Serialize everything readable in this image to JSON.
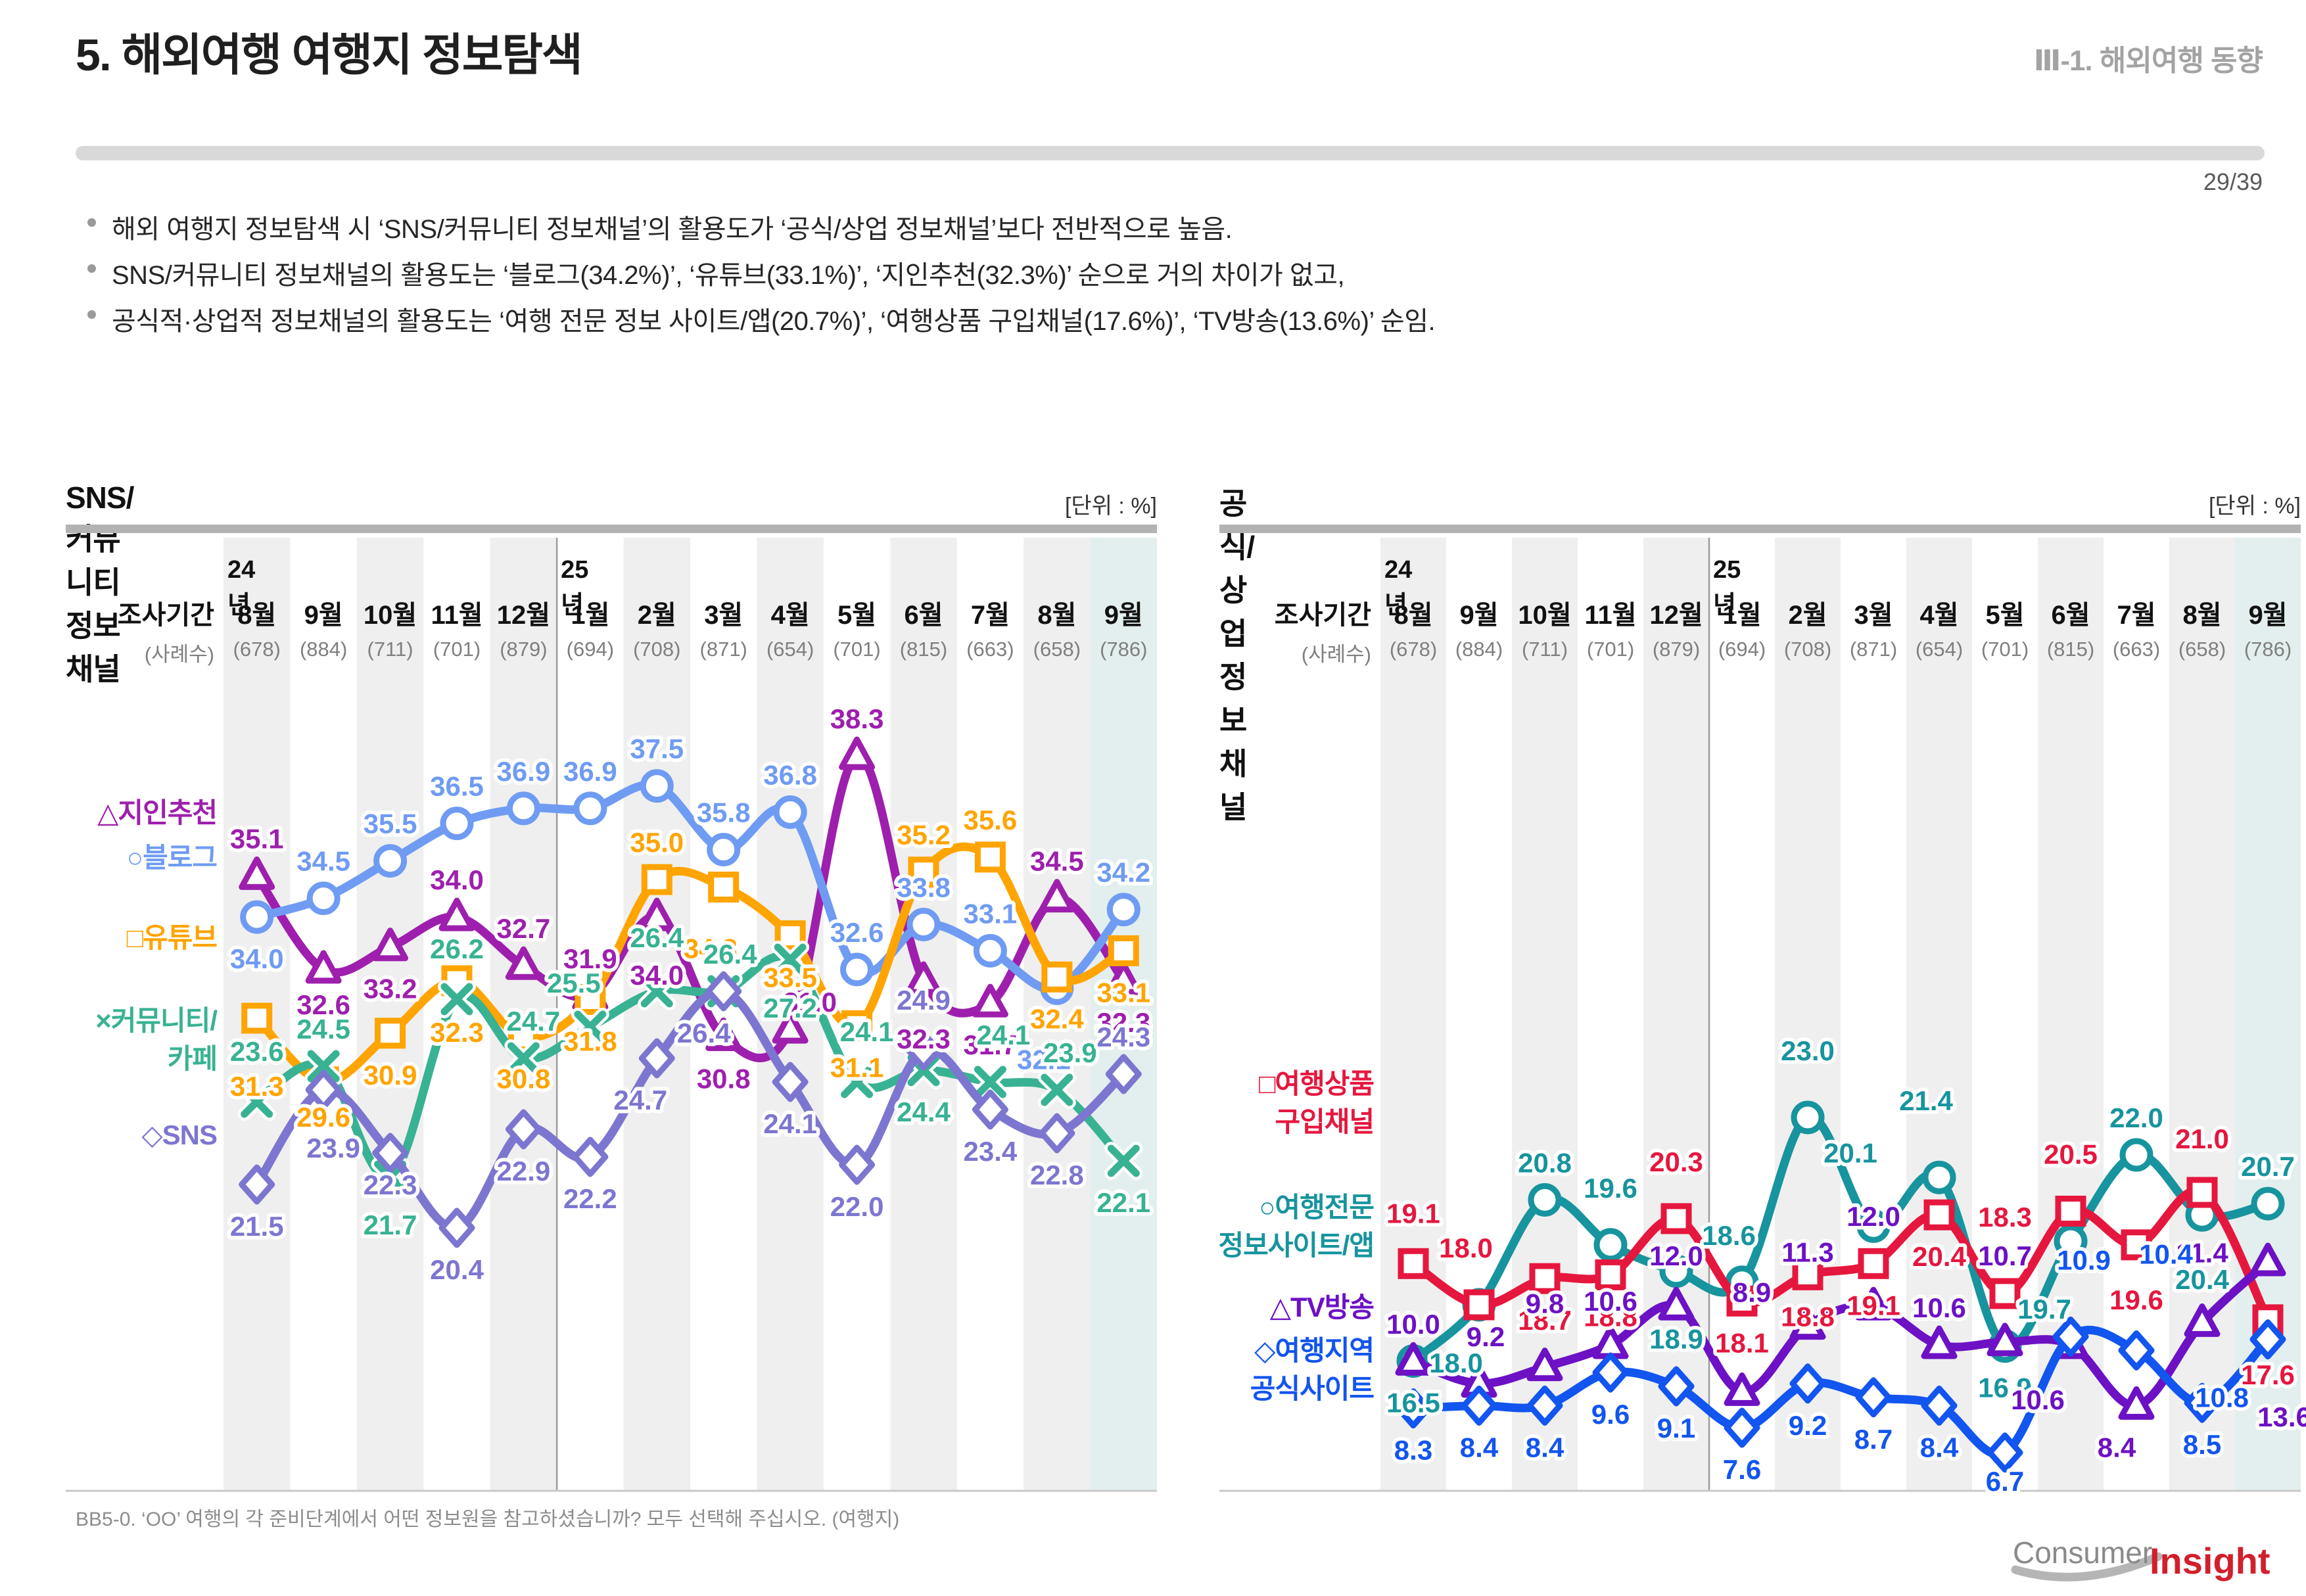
{
  "header": {
    "title": "5. 해외여행 여행지 정보탐색",
    "section": "Ⅲ-1. 해외여행 동향",
    "page_number": "29/39"
  },
  "bullets": [
    "해외 여행지 정보탐색 시 ‘SNS/커뮤니티 정보채널’의 활용도가 ‘공식/상업 정보채널’보다 전반적으로 높음.",
    "SNS/커뮤니티 정보채널의 활용도는 ‘블로그(34.2%)’, ‘유튜브(33.1%)’, ‘지인추천(32.3%)’ 순으로 거의 차이가 없고,",
    "공식적·상업적 정보채널의 활용도는 ‘여행 전문 정보 사이트/앱(20.7%)’, ‘여행상품 구입채널(17.6%)’, ‘TV방송(13.6%)’ 순임."
  ],
  "footnote": "BB5-0. ‘OO’ 여행의 각 준비단계에서 어떤 정보원을 참고하셨습니까? 모두 선택해 주십시오. (여행지)",
  "logo": {
    "gray": "Consumer",
    "red": "Insight"
  },
  "chart_data": [
    {
      "type": "line",
      "title": "SNS/커뮤니티 정보채널",
      "unit_label": "[단위 : %]",
      "row_head_period": "조사기간",
      "row_head_samples": "(사례수)",
      "year_groups": [
        {
          "label": "24년",
          "start_index": 0
        },
        {
          "label": "25년",
          "start_index": 5
        }
      ],
      "categories": [
        "8월",
        "9월",
        "10월",
        "11월",
        "12월",
        "1월",
        "2월",
        "3월",
        "4월",
        "5월",
        "6월",
        "7월",
        "8월",
        "9월"
      ],
      "samples": [
        "(678)",
        "(884)",
        "(711)",
        "(701)",
        "(879)",
        "(694)",
        "(708)",
        "(871)",
        "(654)",
        "(701)",
        "(815)",
        "(663)",
        "(658)",
        "(786)"
      ],
      "series": [
        {
          "key": "acquaintance-recommendation",
          "name": "지인추천",
          "legend_lines": [
            "△지인추천"
          ],
          "marker": "triangle",
          "color": "#9e1fad",
          "band": "A",
          "values": [
            35.1,
            32.6,
            33.2,
            34.0,
            32.7,
            31.9,
            34.0,
            30.8,
            31.0,
            38.3,
            32.3,
            31.7,
            34.5,
            32.3
          ]
        },
        {
          "key": "blog",
          "name": "블로그",
          "legend_lines": [
            "○블로그"
          ],
          "marker": "circle",
          "color": "#6f9bf2",
          "band": "A",
          "values": [
            34.0,
            34.5,
            35.5,
            36.5,
            36.9,
            36.9,
            37.5,
            35.8,
            36.8,
            32.6,
            33.8,
            33.1,
            32.1,
            34.2
          ]
        },
        {
          "key": "youtube",
          "name": "유튜브",
          "legend_lines": [
            "□유튜브"
          ],
          "marker": "square",
          "color": "#ffa400",
          "band": "A",
          "values": [
            31.3,
            29.6,
            30.9,
            32.3,
            30.8,
            31.8,
            35.0,
            34.8,
            33.5,
            31.1,
            35.2,
            35.6,
            32.4,
            33.1
          ]
        },
        {
          "key": "community-cafe",
          "name": "커뮤니티/카페",
          "legend_lines": [
            "×커뮤니티/",
            "카페"
          ],
          "marker": "xmark",
          "color": "#38b293",
          "band": "B",
          "values": [
            23.6,
            24.5,
            21.7,
            26.2,
            24.7,
            25.5,
            26.4,
            26.4,
            27.2,
            24.1,
            24.4,
            24.1,
            23.9,
            22.1
          ]
        },
        {
          "key": "sns",
          "name": "SNS",
          "legend_lines": [
            "◇SNS"
          ],
          "marker": "diamond",
          "color": "#7d76d0",
          "band": "B",
          "values": [
            21.5,
            23.9,
            22.3,
            20.4,
            22.9,
            22.2,
            24.7,
            26.4,
            24.1,
            22.0,
            24.9,
            23.4,
            22.8,
            24.3
          ]
        }
      ]
    },
    {
      "type": "line",
      "title": "공식/상업 정보채널",
      "unit_label": "[단위 : %]",
      "row_head_period": "조사기간",
      "row_head_samples": "(사례수)",
      "year_groups": [
        {
          "label": "24년",
          "start_index": 0
        },
        {
          "label": "25년",
          "start_index": 5
        }
      ],
      "categories": [
        "8월",
        "9월",
        "10월",
        "11월",
        "12월",
        "1월",
        "2월",
        "3월",
        "4월",
        "5월",
        "6월",
        "7월",
        "8월",
        "9월"
      ],
      "samples": [
        "(678)",
        "(884)",
        "(711)",
        "(701)",
        "(879)",
        "(694)",
        "(708)",
        "(871)",
        "(654)",
        "(701)",
        "(815)",
        "(663)",
        "(658)",
        "(786)"
      ],
      "series": [
        {
          "key": "travel-product-purchase-channel",
          "name": "여행상품 구입채널",
          "legend_lines": [
            "□여행상품",
            "구입채널"
          ],
          "marker": "square",
          "color": "#e5173e",
          "band": "A",
          "values": [
            19.1,
            18.0,
            18.7,
            18.8,
            20.3,
            18.1,
            18.8,
            19.1,
            20.4,
            18.3,
            20.5,
            19.6,
            21.0,
            17.6
          ]
        },
        {
          "key": "travel-info-site-app",
          "name": "여행전문 정보사이트/앱",
          "legend_lines": [
            "○여행전문",
            "정보사이트/앱"
          ],
          "marker": "circle",
          "color": "#17949e",
          "band": "A",
          "values": [
            16.5,
            18.0,
            20.8,
            19.6,
            18.9,
            18.6,
            23.0,
            20.1,
            21.4,
            16.9,
            19.7,
            22.0,
            20.4,
            20.7
          ]
        },
        {
          "key": "tv-broadcast",
          "name": "TV방송",
          "legend_lines": [
            "△TV방송"
          ],
          "marker": "triangle",
          "color": "#6d11c5",
          "band": "B",
          "values": [
            10.0,
            9.2,
            9.8,
            10.6,
            12.0,
            8.9,
            11.3,
            12.0,
            10.6,
            10.7,
            10.6,
            8.4,
            11.4,
            13.6
          ]
        },
        {
          "key": "region-official-site",
          "name": "여행지역 공식사이트",
          "legend_lines": [
            "◇여행지역",
            "공식사이트"
          ],
          "marker": "diamond",
          "color": "#1255ef",
          "band": "B",
          "values": [
            8.3,
            8.4,
            8.4,
            9.6,
            9.1,
            7.6,
            9.2,
            8.7,
            8.4,
            6.7,
            10.9,
            10.4,
            8.5,
            10.8
          ]
        }
      ]
    }
  ]
}
